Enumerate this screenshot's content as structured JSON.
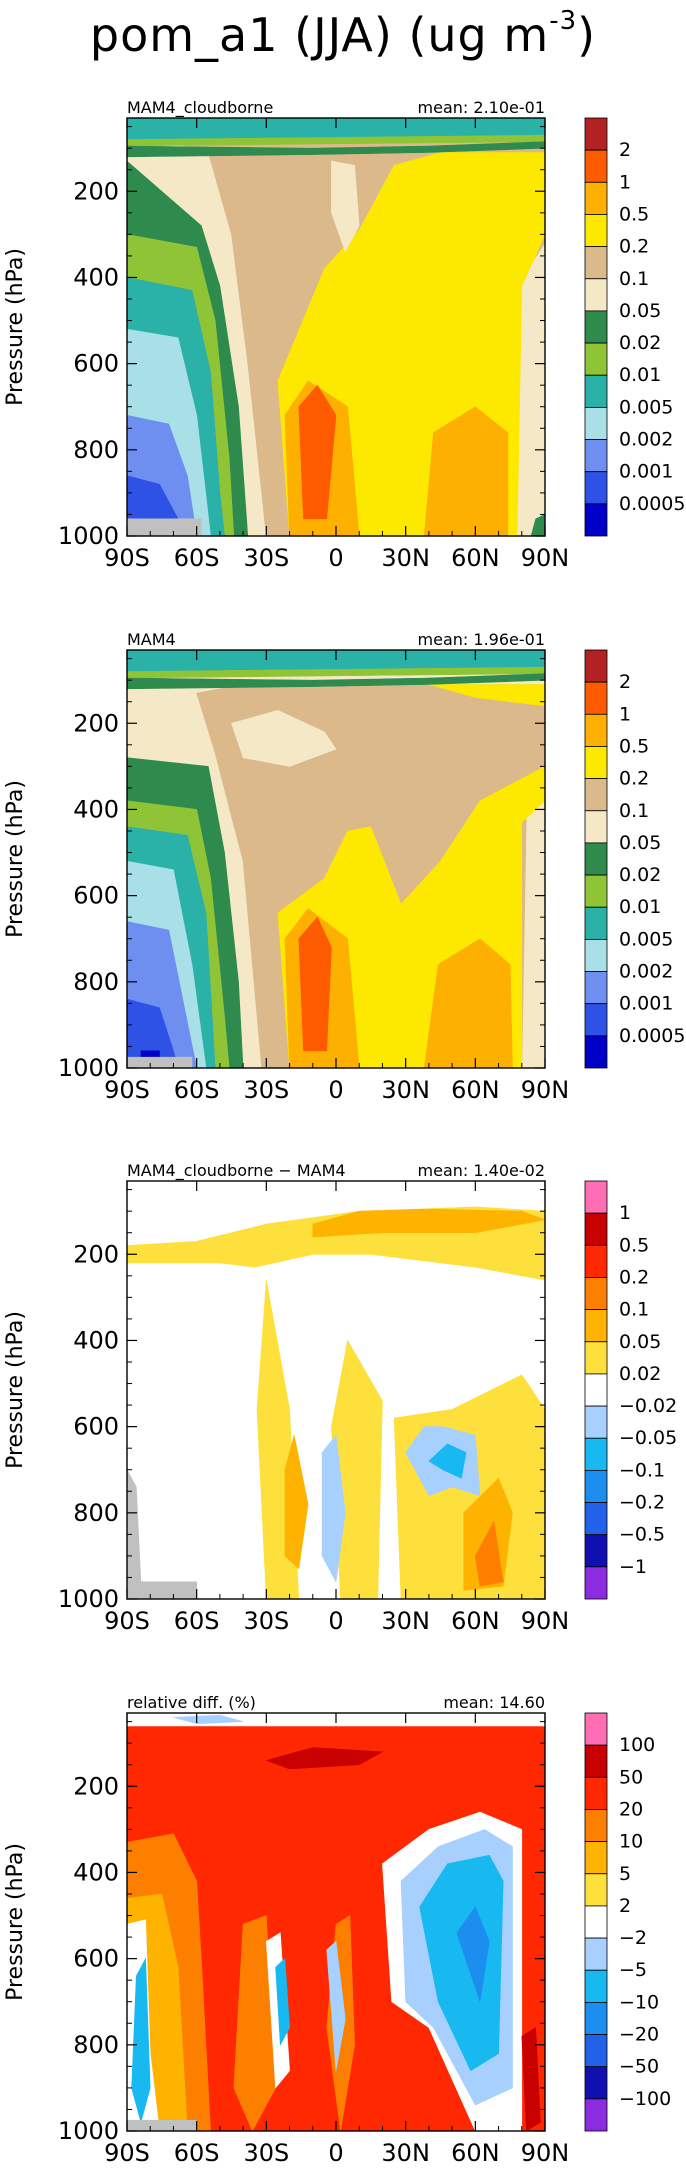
{
  "title": {
    "prefix": "pom_a1 (JJA) (ug m",
    "exponent": "-3",
    "suffix": ")"
  },
  "colors": {
    "standard": [
      "#0000c8",
      "#2e52e6",
      "#6f8ff0",
      "#a9dfe6",
      "#2ab1a8",
      "#8fc436",
      "#2f8a4e",
      "#f4e8c6",
      "#dcb98b",
      "#fde800",
      "#fdb000",
      "#fe5a00",
      "#b22222"
    ],
    "diff": [
      "#8b2be2",
      "#1010b0",
      "#2262ea",
      "#1c8ef0",
      "#18b8f0",
      "#a8d0ff",
      "#ffffff",
      "#fde03c",
      "#fdb300",
      "#fd7f00",
      "#ff2800",
      "#c80000",
      "#ff6eb4"
    ]
  },
  "chart_data": [
    {
      "type": "heatmap",
      "left_label": "MAM4_cloudborne",
      "right_label": "mean: 2.10e-01",
      "ylabel": "Pressure (hPa)",
      "xlabel": "",
      "x_ticks": [
        "90S",
        "60S",
        "30S",
        "0",
        "30N",
        "60N",
        "90N"
      ],
      "x_values": [
        -90,
        -60,
        -30,
        0,
        30,
        60,
        90
      ],
      "y_ticks": [
        "200",
        "400",
        "600",
        "800",
        "1000"
      ],
      "y_values": [
        200,
        400,
        600,
        800,
        1000
      ],
      "xlim": [
        -90,
        90
      ],
      "ylim": [
        1000,
        30
      ],
      "colorbar_labels": [
        "2",
        "1",
        "0.5",
        "0.2",
        "0.1",
        "0.05",
        "0.02",
        "0.01",
        "0.005",
        "0.002",
        "0.001",
        "0.0005"
      ],
      "palette": "standard"
    },
    {
      "type": "heatmap",
      "left_label": "MAM4",
      "right_label": "mean: 1.96e-01",
      "ylabel": "Pressure (hPa)",
      "xlabel": "",
      "x_ticks": [
        "90S",
        "60S",
        "30S",
        "0",
        "30N",
        "60N",
        "90N"
      ],
      "x_values": [
        -90,
        -60,
        -30,
        0,
        30,
        60,
        90
      ],
      "y_ticks": [
        "200",
        "400",
        "600",
        "800",
        "1000"
      ],
      "y_values": [
        200,
        400,
        600,
        800,
        1000
      ],
      "xlim": [
        -90,
        90
      ],
      "ylim": [
        1000,
        30
      ],
      "colorbar_labels": [
        "2",
        "1",
        "0.5",
        "0.2",
        "0.1",
        "0.05",
        "0.02",
        "0.01",
        "0.005",
        "0.002",
        "0.001",
        "0.0005"
      ],
      "palette": "standard"
    },
    {
      "type": "heatmap",
      "left_label": "MAM4_cloudborne − MAM4",
      "right_label": "mean: 1.40e-02",
      "ylabel": "Pressure (hPa)",
      "xlabel": "",
      "x_ticks": [
        "90S",
        "60S",
        "30S",
        "0",
        "30N",
        "60N",
        "90N"
      ],
      "x_values": [
        -90,
        -60,
        -30,
        0,
        30,
        60,
        90
      ],
      "y_ticks": [
        "200",
        "400",
        "600",
        "800",
        "1000"
      ],
      "y_values": [
        200,
        400,
        600,
        800,
        1000
      ],
      "xlim": [
        -90,
        90
      ],
      "ylim": [
        1000,
        30
      ],
      "colorbar_labels": [
        "1",
        "0.5",
        "0.2",
        "0.1",
        "0.05",
        "0.02",
        "−0.02",
        "−0.05",
        "−0.1",
        "−0.2",
        "−0.5",
        "−1"
      ],
      "palette": "diff"
    },
    {
      "type": "heatmap",
      "left_label": "relative diff. (%)",
      "right_label": "mean: 14.60",
      "ylabel": "Pressure (hPa)",
      "xlabel": "",
      "x_ticks": [
        "90S",
        "60S",
        "30S",
        "0",
        "30N",
        "60N",
        "90N"
      ],
      "x_values": [
        -90,
        -60,
        -30,
        0,
        30,
        60,
        90
      ],
      "y_ticks": [
        "200",
        "400",
        "600",
        "800",
        "1000"
      ],
      "y_values": [
        200,
        400,
        600,
        800,
        1000
      ],
      "xlim": [
        -90,
        90
      ],
      "ylim": [
        1000,
        30
      ],
      "colorbar_labels": [
        "100",
        "50",
        "20",
        "10",
        "5",
        "2",
        "−2",
        "−5",
        "−10",
        "−20",
        "−50",
        "−100"
      ],
      "palette": "diff"
    }
  ]
}
